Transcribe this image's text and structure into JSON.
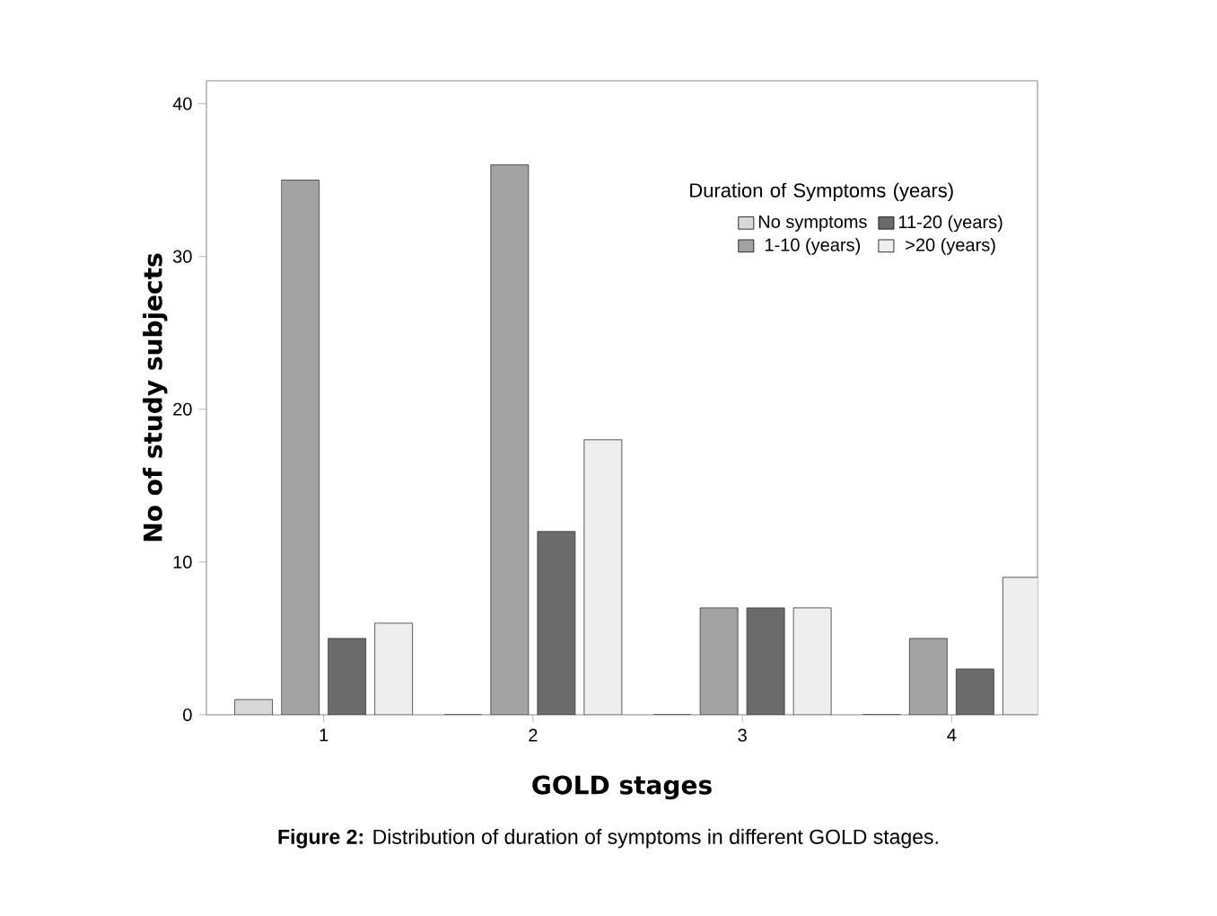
{
  "chart_data": {
    "type": "bar",
    "xlabel": "GOLD stages",
    "ylabel": "No of study subjects",
    "legend_title": "Duration of Symptoms (years)",
    "categories": [
      "1",
      "2",
      "3",
      "4"
    ],
    "series": [
      {
        "name": "No symptoms",
        "color": "#d8d8d8",
        "values": [
          1,
          0,
          0,
          0
        ]
      },
      {
        "name": "1-10 (years)",
        "color": "#a3a3a3",
        "values": [
          35,
          36,
          7,
          5
        ]
      },
      {
        "name": "11-20 (years)",
        "color": "#6b6b6b",
        "values": [
          5,
          12,
          7,
          3
        ]
      },
      {
        "name": ">20 (years)",
        "color": "#eeeeee",
        "values": [
          6,
          18,
          7,
          9
        ]
      }
    ],
    "ylim": [
      0,
      41.5
    ],
    "yticks": [
      0,
      10,
      20,
      30,
      40
    ],
    "legend": "top right",
    "grid": false,
    "annotations": [
      "**Figure 2:** Distribution of duration of symptoms in different GOLD stages."
    ]
  }
}
